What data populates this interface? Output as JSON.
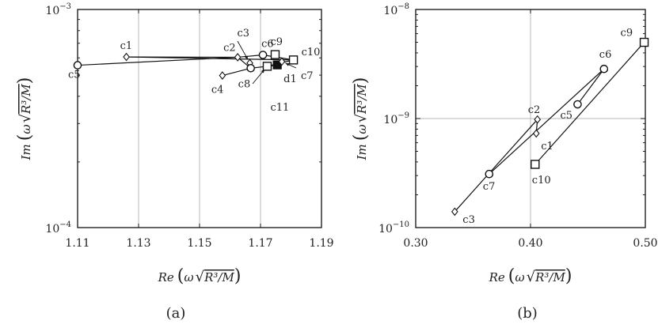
{
  "chart_data": [
    {
      "type": "scatter",
      "caption": "(a)",
      "xlabel_pre": "Re",
      "ylabel_pre": "Im",
      "axis_var": "ω",
      "axis_expr": "R³/M",
      "xscale": "linear",
      "yscale": "log",
      "xlim": [
        1.11,
        1.19
      ],
      "ylim": [
        0.0001,
        0.001
      ],
      "xticks": [
        {
          "v": 1.11,
          "label": "1.11"
        },
        {
          "v": 1.13,
          "label": "1.13"
        },
        {
          "v": 1.15,
          "label": "1.15"
        },
        {
          "v": 1.17,
          "label": "1.17"
        },
        {
          "v": 1.19,
          "label": "1.19"
        }
      ],
      "yticks": [
        {
          "v": 0.0001,
          "base": "10",
          "exp": "−4"
        },
        {
          "v": 0.001,
          "base": "10",
          "exp": "−3"
        }
      ],
      "xgrid": [
        1.13,
        1.15,
        1.17
      ],
      "points": [
        {
          "id": "c5",
          "label": "c5",
          "x": 1.11,
          "y": 0.000555,
          "marker": "circle"
        },
        {
          "id": "c1",
          "label": "c1",
          "x": 1.126,
          "y": 0.000606,
          "marker": "diamond"
        },
        {
          "id": "c2",
          "label": "c2",
          "x": 1.1625,
          "y": 0.000604,
          "marker": "diamond"
        },
        {
          "id": "c3",
          "label": "c3",
          "x": 1.1665,
          "y": 0.000568,
          "marker": "diamond"
        },
        {
          "id": "c4",
          "label": "c4",
          "x": 1.1575,
          "y": 0.000498,
          "marker": "diamond"
        },
        {
          "id": "c8",
          "label": "c8",
          "x": 1.1668,
          "y": 0.000538,
          "marker": "circle"
        },
        {
          "id": "c6",
          "label": "c6",
          "x": 1.1708,
          "y": 0.000619,
          "marker": "circle"
        },
        {
          "id": "c9",
          "label": "c9",
          "x": 1.1748,
          "y": 0.000621,
          "marker": "square"
        },
        {
          "id": "c10",
          "label": "c10",
          "x": 1.1808,
          "y": 0.000587,
          "marker": "square"
        },
        {
          "id": "c11",
          "label": "c11",
          "x": 1.1722,
          "y": 0.000549,
          "marker": "square"
        },
        {
          "id": "d1",
          "label": "d1",
          "x": 1.1755,
          "y": 0.000557,
          "marker": "filled-square"
        },
        {
          "id": "c7",
          "label": "c7",
          "x": 1.177,
          "y": 0.000577,
          "marker": "diamond"
        }
      ],
      "lines": [
        [
          "c5",
          "c2"
        ],
        [
          "c1",
          "c2"
        ],
        [
          "c1",
          "c10"
        ],
        [
          "c2",
          "c6"
        ],
        [
          "c6",
          "c10"
        ],
        [
          "c2",
          "c8"
        ],
        [
          "c4",
          "c8"
        ],
        [
          "c8",
          "c11"
        ],
        [
          "c11",
          "c10"
        ]
      ]
    },
    {
      "type": "scatter",
      "caption": "(b)",
      "xlabel_pre": "Re",
      "ylabel_pre": "Im",
      "axis_var": "ω",
      "axis_expr": "R³/M",
      "xscale": "linear",
      "yscale": "log",
      "xlim": [
        0.3,
        0.5
      ],
      "ylim": [
        1e-10,
        1e-08
      ],
      "xticks": [
        {
          "v": 0.3,
          "label": "0.30"
        },
        {
          "v": 0.4,
          "label": "0.40"
        },
        {
          "v": 0.5,
          "label": "0.50"
        }
      ],
      "yticks": [
        {
          "v": 1e-10,
          "base": "10",
          "exp": "−10"
        },
        {
          "v": 1e-09,
          "base": "10",
          "exp": "−9"
        },
        {
          "v": 1e-08,
          "base": "10",
          "exp": "−8"
        }
      ],
      "xgrid": [
        0.4
      ],
      "ygrid": [
        1e-09
      ],
      "points": [
        {
          "id": "c9",
          "label": "c9",
          "x": 0.499,
          "y": 5e-09,
          "marker": "square"
        },
        {
          "id": "c6",
          "label": "c6",
          "x": 0.464,
          "y": 2.85e-09,
          "marker": "circle"
        },
        {
          "id": "c5",
          "label": "c5",
          "x": 0.441,
          "y": 1.35e-09,
          "marker": "circle"
        },
        {
          "id": "c2",
          "label": "c2",
          "x": 0.406,
          "y": 9.8e-10,
          "marker": "diamond"
        },
        {
          "id": "c1",
          "label": "c1",
          "x": 0.405,
          "y": 7.3e-10,
          "marker": "diamond"
        },
        {
          "id": "c10",
          "label": "c10",
          "x": 0.404,
          "y": 3.8e-10,
          "marker": "square"
        },
        {
          "id": "c7",
          "label": "c7",
          "x": 0.364,
          "y": 3.1e-10,
          "marker": "circle"
        },
        {
          "id": "c3",
          "label": "c3",
          "x": 0.334,
          "y": 1.4e-10,
          "marker": "diamond"
        }
      ],
      "lines": [
        [
          "c3",
          "c2"
        ],
        [
          "c2",
          "c1"
        ],
        [
          "c7",
          "c6"
        ],
        [
          "c6",
          "c5"
        ],
        [
          "c10",
          "c9"
        ]
      ]
    }
  ]
}
